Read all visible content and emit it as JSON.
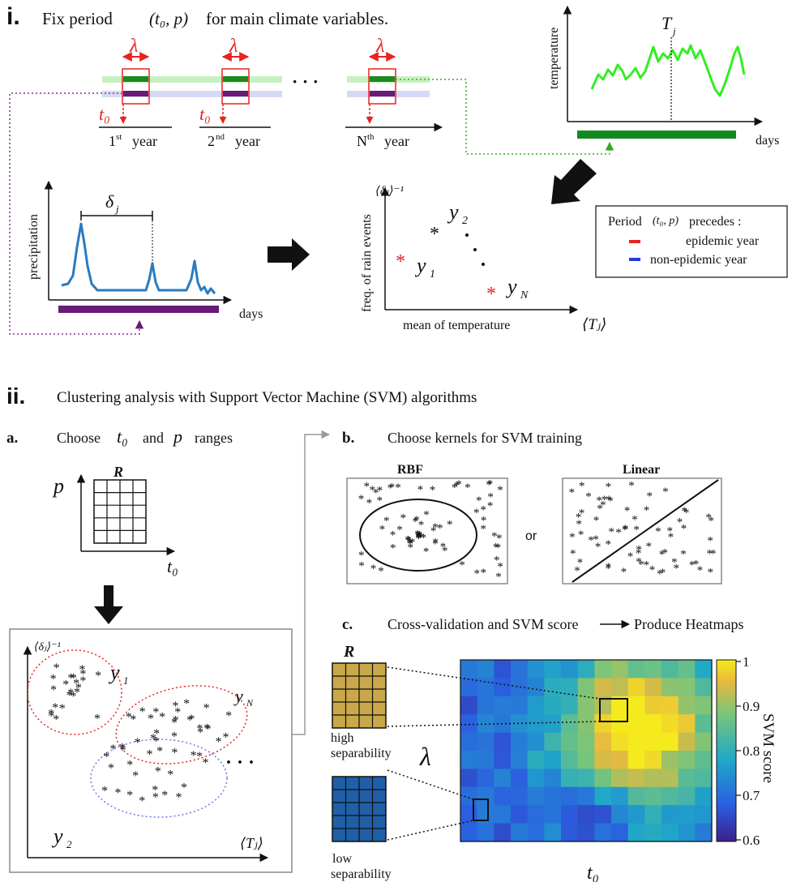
{
  "section_i": {
    "label": "i.",
    "title": "Fix period",
    "title_math": "(t₀, p)",
    "title_rest": "for main climate variables.",
    "lambda": "λ",
    "t0": "t₀",
    "dots": "· · ·",
    "year_first_num": "1",
    "year_first_sup": "st",
    "year_second_num": "2",
    "year_second_sup": "nd",
    "year_nth_num": "N",
    "year_nth_sup": "th",
    "year_word": "year",
    "temp_ylabel": "temperature",
    "temp_xlabel": "days",
    "temp_marker": "T",
    "temp_marker_sub": "j",
    "precip_ylabel": "precipitation",
    "precip_xlabel": "days",
    "precip_delta": "δ",
    "precip_delta_sub": "j",
    "scatter_ylabel": "freq. of rain events",
    "scatter_xlabel": "mean of temperature",
    "scatter_yaxis_math": "⟨δⱼ⟩⁻¹",
    "scatter_xaxis_math": "⟨Tⱼ⟩",
    "y1": "y",
    "y1_sub": "1",
    "y2": "y",
    "y2_sub": "2",
    "yN": "y",
    "yN_sub": "N",
    "scatter_dots": "·",
    "legend_title": "Period",
    "legend_title_math": "(t₀, p)",
    "legend_title_rest": "precedes :",
    "legend_epidemic": "epidemic year",
    "legend_nonepidemic": "non-epidemic year",
    "colors": {
      "red": "#e8231e",
      "blue": "#1f3fd6",
      "green": "#33ee22",
      "dark_green": "#138a20",
      "purple": "#6a1a78",
      "precip_blue": "#2a7bc0",
      "gray": "#8a8a8a"
    }
  },
  "section_ii": {
    "label": "ii.",
    "title": "Clustering analysis with  Support Vector Machine (SVM) algorithms",
    "a_label": "a.",
    "a_title": "Choose",
    "a_t0": "t₀",
    "a_and": "and",
    "a_p": "p",
    "a_ranges": "ranges",
    "grid_R": "R",
    "grid_p": "p",
    "grid_t0": "t₀",
    "cluster_yaxis": "⟨δⱼ⟩⁻¹",
    "cluster_xaxis": "⟨Tⱼ⟩",
    "cluster_y1": "y",
    "cluster_y1_sub": "1",
    "cluster_y2": "y",
    "cluster_y2_sub": "2",
    "cluster_yN": "y",
    "cluster_yN_sub": "N",
    "cluster_dots": "· · ·",
    "b_label": "b.",
    "b_title": "Choose  kernels for SVM training",
    "rbf_label": "RBF",
    "linear_label": "Linear",
    "or_label": "or",
    "c_label": "c.",
    "c_title": "Cross-validation and SVM score",
    "c_arrow_text": "Produce  Heatmaps",
    "R_high": "R",
    "high_sep_line1": "high",
    "high_sep_line2": "separability",
    "low_sep_line1": "low",
    "low_sep_line2": "separability",
    "heatmap_ylabel": "λ",
    "heatmap_xlabel": "t₀",
    "colorbar_title": "SVM  score",
    "colorbar_ticks": [
      "1",
      "0.9",
      "0.8",
      "0.7",
      "0.6"
    ],
    "colors": {
      "gold": "#c9a84a",
      "steel_blue": "#1f5fa8",
      "cmap_low": "#3b1f8c",
      "cmap_high": "#f5e31d"
    }
  }
}
